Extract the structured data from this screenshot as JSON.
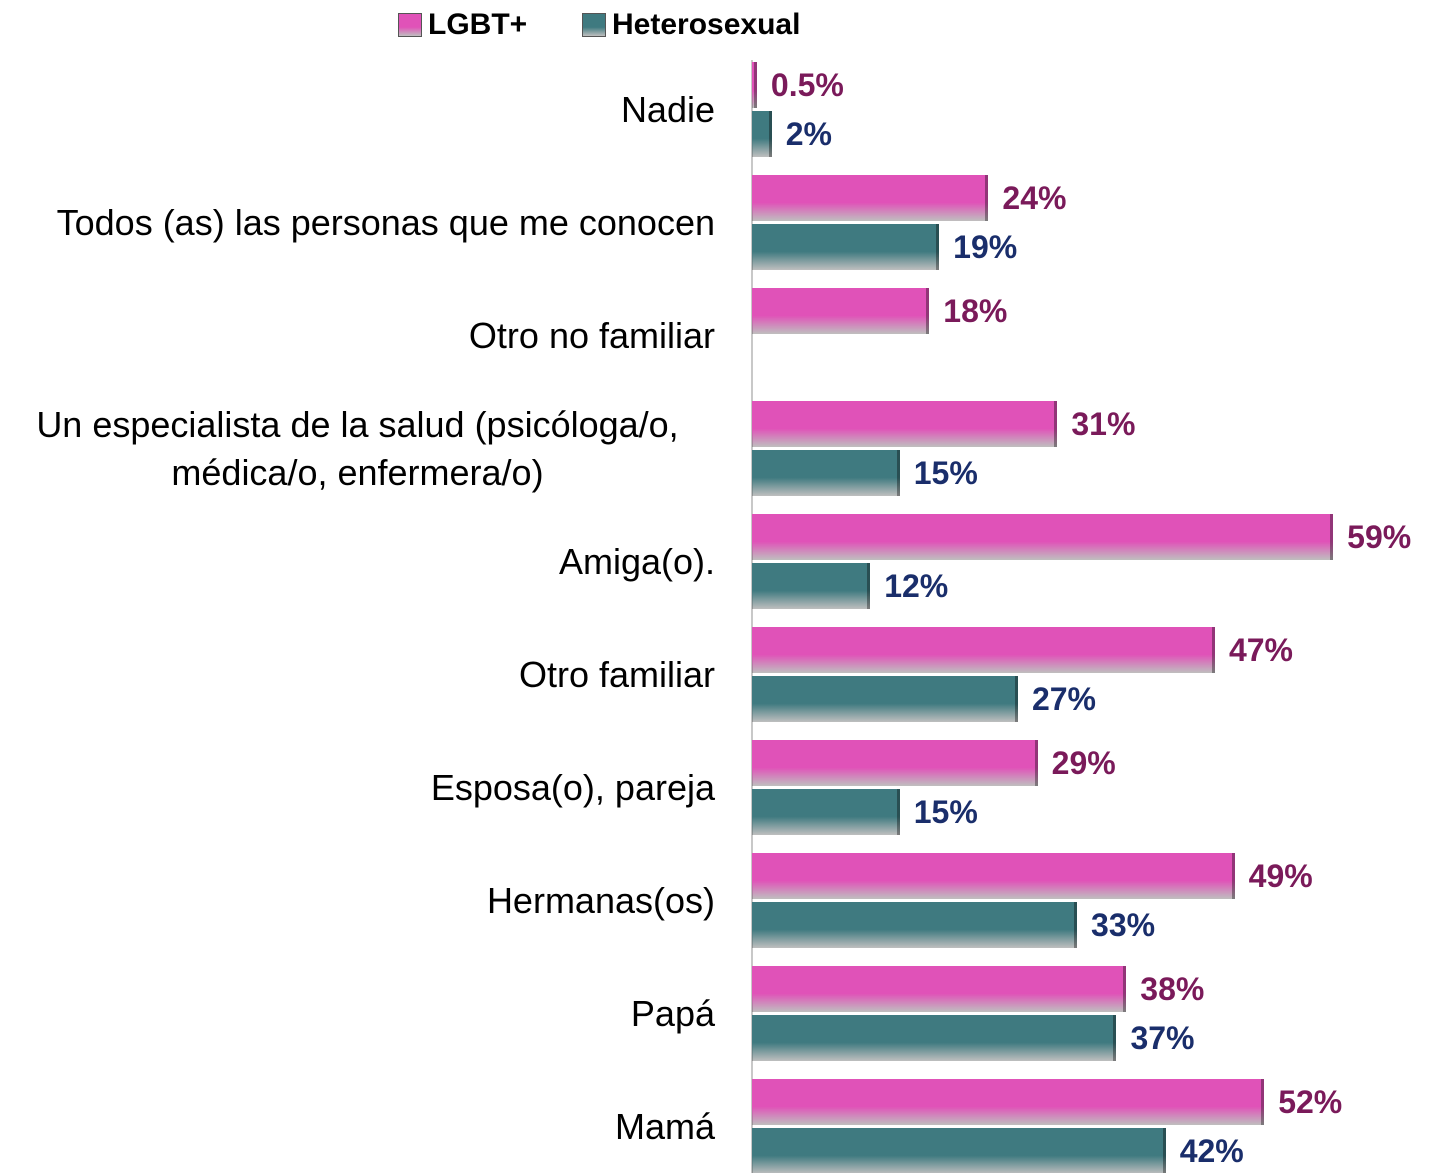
{
  "chart_data": {
    "type": "bar",
    "orientation": "horizontal",
    "categories": [
      "Nadie",
      "Todos (as) las personas que me conocen",
      "Otro no familiar",
      "Un especialista de la salud (psicóloga/o, médica/o, enfermera/o)",
      "Amiga(o).",
      "Otro familiar",
      "Esposa(o), pareja",
      "Hermanas(os)",
      "Papá",
      "Mamá"
    ],
    "series": [
      {
        "name": "LGBT+",
        "color": "#e052b8",
        "label_color": "#7a1a5a",
        "values": [
          0.5,
          24,
          18,
          31,
          59,
          47,
          29,
          49,
          38,
          52
        ],
        "value_labels": [
          "0.5%",
          "24%",
          "18%",
          "31%",
          "59%",
          "47%",
          "29%",
          "49%",
          "38%",
          "52%"
        ]
      },
      {
        "name": "Heterosexual",
        "color": "#3f7a80",
        "label_color": "#1a2e6b",
        "values": [
          2,
          19,
          null,
          15,
          12,
          27,
          15,
          33,
          37,
          42
        ],
        "value_labels": [
          "2%",
          "19%",
          null,
          "15%",
          "12%",
          "27%",
          "15%",
          "33%",
          "37%",
          "42%"
        ]
      }
    ],
    "legend": "top"
  }
}
